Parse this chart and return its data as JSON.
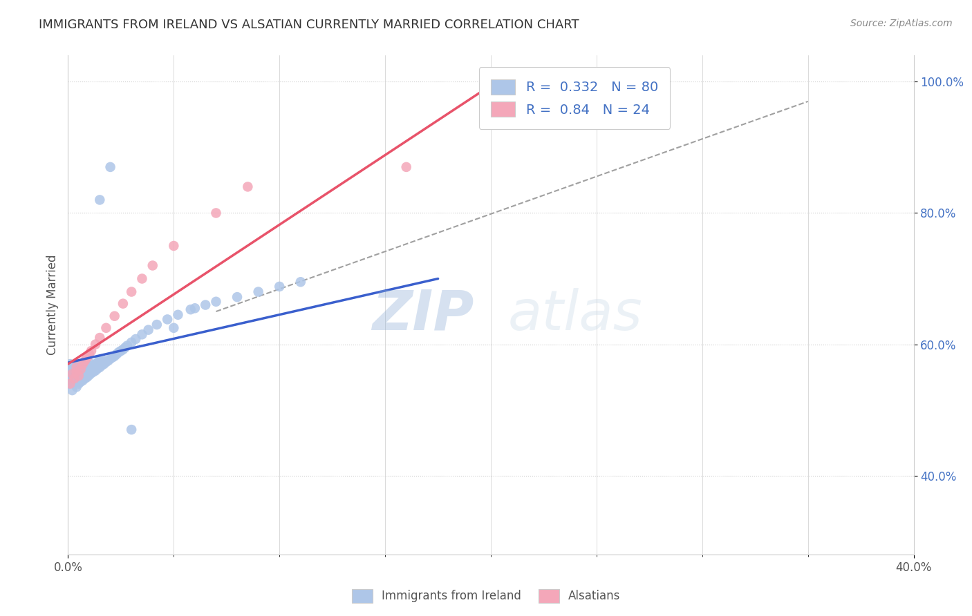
{
  "title": "IMMIGRANTS FROM IRELAND VS ALSATIAN CURRENTLY MARRIED CORRELATION CHART",
  "source_text": "Source: ZipAtlas.com",
  "ylabel": "Currently Married",
  "xlim": [
    0.0,
    0.4
  ],
  "ylim": [
    0.28,
    1.04
  ],
  "ytick_labels": [
    "40.0%",
    "60.0%",
    "80.0%",
    "100.0%"
  ],
  "ytick_values": [
    0.4,
    0.6,
    0.8,
    1.0
  ],
  "xtick_labels": [
    "0.0%",
    "40.0%"
  ],
  "xtick_values": [
    0.0,
    0.4
  ],
  "ireland_color": "#aec6e8",
  "alsatian_color": "#f4a7b9",
  "ireland_R": 0.332,
  "ireland_N": 80,
  "alsatian_R": 0.84,
  "alsatian_N": 24,
  "ireland_line_color": "#3a5fcd",
  "alsatian_line_color": "#e8536a",
  "watermark_zip": "ZIP",
  "watermark_atlas": "atlas",
  "legend_label_ireland": "Immigrants from Ireland",
  "legend_label_alsatian": "Alsatians",
  "blue_line_x": [
    0.0,
    0.175
  ],
  "blue_line_y": [
    0.572,
    0.7
  ],
  "pink_line_x": [
    0.0,
    0.205
  ],
  "pink_line_y": [
    0.57,
    1.005
  ],
  "dash_line_x": [
    0.07,
    0.35
  ],
  "dash_line_y": [
    0.65,
    0.97
  ],
  "ireland_pts_x": [
    0.0,
    0.0,
    0.001,
    0.001,
    0.001,
    0.001,
    0.002,
    0.002,
    0.002,
    0.002,
    0.003,
    0.003,
    0.003,
    0.003,
    0.004,
    0.004,
    0.004,
    0.004,
    0.005,
    0.005,
    0.005,
    0.005,
    0.006,
    0.006,
    0.006,
    0.007,
    0.007,
    0.007,
    0.008,
    0.008,
    0.008,
    0.009,
    0.009,
    0.009,
    0.01,
    0.01,
    0.01,
    0.011,
    0.011,
    0.012,
    0.012,
    0.013,
    0.013,
    0.014,
    0.014,
    0.015,
    0.015,
    0.016,
    0.016,
    0.017,
    0.018,
    0.019,
    0.02,
    0.021,
    0.022,
    0.023,
    0.024,
    0.025,
    0.026,
    0.027,
    0.028,
    0.03,
    0.032,
    0.035,
    0.038,
    0.042,
    0.047,
    0.052,
    0.058,
    0.06,
    0.065,
    0.07,
    0.08,
    0.09,
    0.1,
    0.11,
    0.03,
    0.05,
    0.015,
    0.02
  ],
  "ireland_pts_y": [
    0.54,
    0.55,
    0.545,
    0.555,
    0.56,
    0.57,
    0.53,
    0.545,
    0.555,
    0.565,
    0.54,
    0.55,
    0.558,
    0.565,
    0.535,
    0.548,
    0.558,
    0.567,
    0.54,
    0.552,
    0.56,
    0.57,
    0.543,
    0.555,
    0.563,
    0.545,
    0.557,
    0.565,
    0.548,
    0.558,
    0.568,
    0.55,
    0.56,
    0.57,
    0.553,
    0.563,
    0.572,
    0.556,
    0.565,
    0.558,
    0.567,
    0.56,
    0.57,
    0.563,
    0.572,
    0.565,
    0.575,
    0.568,
    0.577,
    0.57,
    0.573,
    0.575,
    0.578,
    0.58,
    0.582,
    0.585,
    0.588,
    0.59,
    0.592,
    0.595,
    0.598,
    0.603,
    0.608,
    0.615,
    0.622,
    0.63,
    0.638,
    0.645,
    0.653,
    0.655,
    0.66,
    0.665,
    0.672,
    0.68,
    0.688,
    0.695,
    0.47,
    0.625,
    0.82,
    0.87
  ],
  "alsatian_pts_x": [
    0.001,
    0.002,
    0.003,
    0.004,
    0.004,
    0.005,
    0.006,
    0.007,
    0.008,
    0.009,
    0.01,
    0.011,
    0.013,
    0.015,
    0.018,
    0.022,
    0.026,
    0.03,
    0.035,
    0.04,
    0.05,
    0.07,
    0.085,
    0.16
  ],
  "alsatian_pts_y": [
    0.54,
    0.555,
    0.548,
    0.558,
    0.565,
    0.552,
    0.562,
    0.57,
    0.575,
    0.58,
    0.585,
    0.59,
    0.6,
    0.61,
    0.625,
    0.643,
    0.662,
    0.68,
    0.7,
    0.72,
    0.75,
    0.8,
    0.84,
    0.87
  ]
}
